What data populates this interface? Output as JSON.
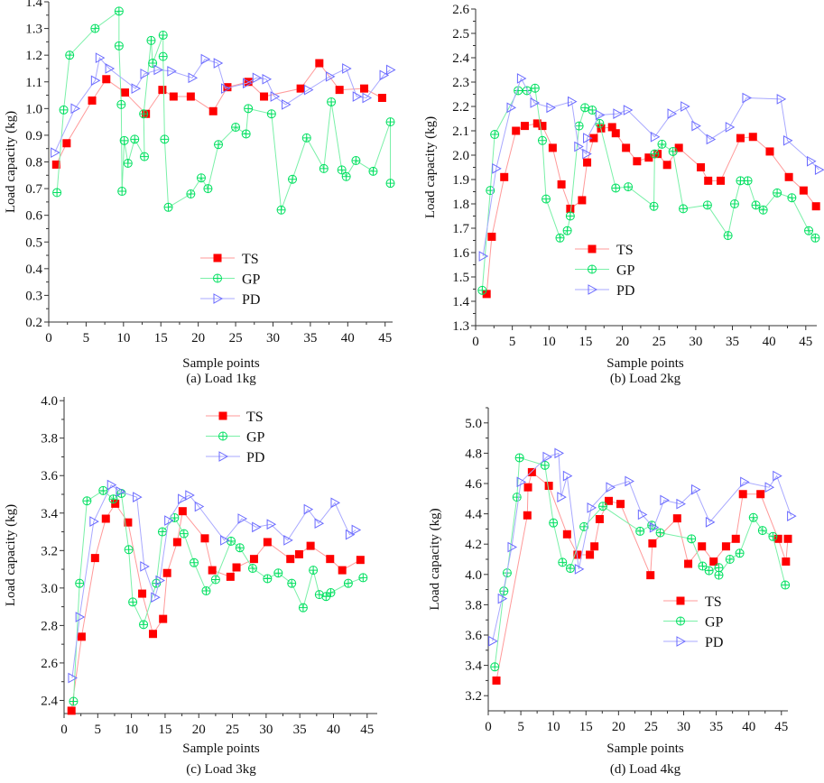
{
  "legend_labels": [
    "TS",
    "GP",
    "PD"
  ],
  "colors": {
    "TS": "#ff0000",
    "TS_line": "#ff9a9a",
    "GP": "#00e060",
    "GP_line": "#7af0a8",
    "PD": "#6a6aff",
    "PD_line": "#a8a8ff"
  },
  "chart_data": [
    {
      "type": "line",
      "caption": "(a) Load 1kg",
      "xlabel": "Sample points",
      "ylabel": "Load capacity (kg)",
      "xlim": [
        0,
        46
      ],
      "ylim": [
        0.2,
        1.4
      ],
      "xticks": [
        0,
        5,
        10,
        15,
        20,
        25,
        30,
        35,
        40,
        45
      ],
      "yticks": [
        0.2,
        0.3,
        0.4,
        0.5,
        0.6,
        0.7,
        0.8,
        0.9,
        1.0,
        1.1,
        1.2,
        1.3,
        1.4
      ],
      "ydec": 1,
      "legend": "bottom-center",
      "grid": false,
      "series": [
        {
          "name": "TS",
          "x": [
            1.0,
            2.4,
            5.8,
            7.7,
            10.2,
            13,
            15.2,
            16.7,
            19,
            22,
            23.9,
            26.7,
            28.8,
            33.7,
            36.2,
            38.9,
            42.2,
            44.6
          ],
          "y": [
            0.79,
            0.87,
            1.03,
            1.11,
            1.06,
            0.98,
            1.07,
            1.045,
            1.045,
            0.99,
            1.08,
            1.1,
            1.045,
            1.075,
            1.17,
            1.07,
            1.075,
            1.04
          ]
        },
        {
          "name": "GP",
          "x": [
            1.1,
            2.0,
            2.8,
            6.2,
            9.4,
            9.4,
            9.7,
            9.8,
            10.1,
            10.6,
            11.5,
            12.8,
            12.7,
            13.7,
            13.9,
            15.3,
            15.3,
            15.5,
            16.0,
            19.0,
            20.4,
            21.3,
            22.7,
            25,
            26.4,
            26.7,
            29.8,
            31.1,
            32.6,
            34.5,
            36.8,
            37.8,
            39.2,
            39.8,
            41.1,
            43.4,
            45.7,
            45.7
          ],
          "y": [
            0.685,
            0.995,
            1.2,
            1.3,
            1.365,
            1.235,
            1.015,
            0.69,
            0.88,
            0.795,
            0.885,
            0.82,
            0.98,
            1.255,
            1.17,
            1.275,
            1.195,
            0.885,
            0.63,
            0.68,
            0.74,
            0.7,
            0.865,
            0.93,
            0.905,
            1.0,
            0.98,
            0.62,
            0.735,
            0.89,
            0.775,
            1.025,
            0.77,
            0.745,
            0.805,
            0.765,
            0.95,
            0.72
          ]
        },
        {
          "name": "PD",
          "x": [
            0.8,
            3.5,
            6.2,
            6.8,
            8.1,
            11.6,
            12.8,
            14.6,
            16.4,
            19.2,
            20.9,
            22.6,
            23.6,
            26.5,
            27.8,
            29.1,
            30.2,
            31.7,
            34.7,
            37.6,
            39.8,
            41.2,
            42.5,
            44.8,
            45.7
          ],
          "y": [
            0.835,
            1.0,
            1.105,
            1.19,
            1.15,
            1.075,
            1.13,
            1.145,
            1.14,
            1.115,
            1.185,
            1.17,
            1.075,
            1.095,
            1.115,
            1.11,
            1.045,
            1.015,
            1.07,
            1.12,
            1.15,
            1.045,
            1.04,
            1.125,
            1.145
          ]
        }
      ]
    },
    {
      "type": "line",
      "caption": "(b) Load 2kg",
      "xlabel": "Sample points",
      "ylabel": "Load capacity (kg)",
      "xlim": [
        0,
        46.5
      ],
      "ylim": [
        1.3,
        2.6
      ],
      "xticks": [
        0,
        5,
        10,
        15,
        20,
        25,
        30,
        35,
        40,
        45
      ],
      "yticks": [
        1.3,
        1.4,
        1.5,
        1.6,
        1.7,
        1.8,
        1.9,
        2.0,
        2.1,
        2.2,
        2.3,
        2.4,
        2.5,
        2.6
      ],
      "ydec": 1,
      "legend": "bottom-center",
      "grid": false,
      "series": [
        {
          "name": "TS",
          "x": [
            1.5,
            2.2,
            3.9,
            5.5,
            6.7,
            8.4,
            9.1,
            10.5,
            11.7,
            12.9,
            14.5,
            15.2,
            16.1,
            17.1,
            18.6,
            19.1,
            20.5,
            22,
            23.6,
            24.8,
            26.1,
            27.7,
            30.7,
            31.7,
            33.4,
            36.1,
            37.8,
            40.1,
            42.7,
            44.7,
            46.4
          ],
          "y": [
            1.43,
            1.665,
            1.91,
            2.1,
            2.12,
            2.13,
            2.12,
            2.03,
            1.88,
            1.78,
            1.815,
            1.97,
            2.07,
            2.11,
            2.115,
            2.09,
            2.03,
            1.975,
            1.99,
            2.005,
            1.96,
            2.03,
            1.95,
            1.895,
            1.895,
            2.07,
            2.075,
            2.015,
            1.91,
            1.855,
            1.79
          ]
        },
        {
          "name": "GP",
          "x": [
            0.9,
            2.0,
            2.6,
            5.8,
            7.0,
            8.1,
            9.1,
            9.6,
            11.5,
            12.5,
            12.9,
            14.1,
            14.9,
            15.9,
            16.9,
            19.1,
            20.8,
            24.3,
            24.4,
            25.4,
            26.9,
            28.3,
            31.6,
            34.4,
            35.3,
            36.1,
            37.1,
            38.2,
            39.2,
            41.1,
            43.1,
            45.4,
            46.3
          ],
          "y": [
            1.445,
            1.855,
            2.085,
            2.265,
            2.265,
            2.275,
            2.06,
            1.82,
            1.66,
            1.69,
            1.75,
            2.12,
            2.195,
            2.185,
            2.13,
            1.865,
            1.87,
            1.79,
            2.005,
            2.045,
            2.015,
            1.78,
            1.795,
            1.67,
            1.8,
            1.895,
            1.895,
            1.795,
            1.775,
            1.845,
            1.825,
            1.69,
            1.66
          ]
        },
        {
          "name": "PD",
          "x": [
            1.0,
            2.8,
            4.8,
            6.2,
            8.0,
            10.2,
            13.1,
            14.0,
            15.1,
            15.2,
            16.9,
            19.3,
            20.7,
            24.4,
            26.7,
            28.5,
            30.0,
            32,
            34.6,
            36.9,
            41.6,
            42.5,
            45.7,
            46.8
          ],
          "y": [
            1.585,
            1.945,
            2.195,
            2.315,
            2.215,
            2.195,
            2.22,
            2.035,
            2.005,
            2.07,
            2.165,
            2.17,
            2.185,
            2.075,
            2.17,
            2.2,
            2.12,
            2.065,
            2.115,
            2.235,
            2.23,
            2.06,
            1.975,
            1.94
          ]
        }
      ]
    },
    {
      "type": "line",
      "caption": "(c) Load 3kg",
      "xlabel": "Sample points",
      "ylabel": "Load capacity (kg)",
      "xlim": [
        0,
        46.5
      ],
      "ylim": [
        2.33,
        4.02
      ],
      "xticks": [
        0,
        5,
        10,
        15,
        20,
        25,
        30,
        35,
        40,
        45
      ],
      "yticks": [
        2.4,
        2.6,
        2.8,
        3.0,
        3.2,
        3.4,
        3.6,
        3.8,
        4.0
      ],
      "ydec": 1,
      "legend": "top-center",
      "grid": false,
      "series": [
        {
          "name": "TS",
          "x": [
            1.1,
            2.6,
            4.6,
            6.2,
            7.6,
            9.5,
            11.6,
            13.2,
            14.7,
            15.3,
            16.8,
            17.6,
            20.9,
            22.0,
            24.7,
            25.6,
            28.2,
            30.2,
            33.6,
            34.9,
            36.6,
            39.5,
            41.3,
            44.0
          ],
          "y": [
            2.345,
            2.74,
            3.16,
            3.37,
            3.45,
            3.35,
            2.97,
            2.755,
            2.835,
            3.08,
            3.245,
            3.41,
            3.265,
            3.095,
            3.06,
            3.11,
            3.155,
            3.245,
            3.155,
            3.18,
            3.225,
            3.155,
            3.095,
            3.15
          ]
        },
        {
          "name": "GP",
          "x": [
            1.4,
            2.3,
            3.4,
            5.8,
            7.3,
            8.5,
            9.6,
            10.2,
            11.8,
            13.7,
            14.6,
            16.4,
            17.8,
            19.3,
            21.1,
            22.5,
            24.8,
            26.1,
            28,
            30.2,
            31.8,
            33.8,
            35.5,
            37,
            37.9,
            38.9,
            39.6,
            42.2,
            44.4
          ],
          "y": [
            2.395,
            3.025,
            3.465,
            3.52,
            3.475,
            3.505,
            3.205,
            2.925,
            2.805,
            3.025,
            3.3,
            3.375,
            3.29,
            3.135,
            2.985,
            3.045,
            3.25,
            3.215,
            3.105,
            3.05,
            3.08,
            3.025,
            2.895,
            3.095,
            2.965,
            2.955,
            2.975,
            3.025,
            3.055
          ]
        },
        {
          "name": "PD",
          "x": [
            1.2,
            2.3,
            4.4,
            7.0,
            8.3,
            10.8,
            11.9,
            13.5,
            14.2,
            15.5,
            17.5,
            18.6,
            20.0,
            23.8,
            26.4,
            28.5,
            30.7,
            33.2,
            36.2,
            37.8,
            40.2,
            42.4,
            43.3
          ],
          "y": [
            2.52,
            2.845,
            3.355,
            3.55,
            3.515,
            3.485,
            3.115,
            2.95,
            3.04,
            3.36,
            3.475,
            3.495,
            3.435,
            3.255,
            3.37,
            3.325,
            3.34,
            3.255,
            3.42,
            3.345,
            3.455,
            3.285,
            3.31
          ]
        }
      ]
    },
    {
      "type": "line",
      "caption": "(d) Load 4kg",
      "xlabel": "Sample points",
      "ylabel": "Load capacity (kg)",
      "xlim": [
        0,
        46
      ],
      "ylim": [
        3.1,
        5.1
      ],
      "xticks": [
        0,
        5,
        10,
        15,
        20,
        25,
        30,
        35,
        40,
        45
      ],
      "yticks": [
        3.2,
        3.4,
        3.6,
        3.8,
        4.0,
        4.2,
        4.4,
        4.6,
        4.8,
        5.0
      ],
      "ydec": 1,
      "legend": "bottom-center",
      "grid": false,
      "series": [
        {
          "name": "TS",
          "x": [
            1.25,
            6.0,
            6.1,
            6.7,
            9.3,
            12.1,
            13.7,
            15.6,
            16.3,
            17.1,
            18.5,
            20.3,
            24.9,
            25.2,
            29.0,
            30.7,
            32.8,
            34.6,
            36.5,
            38.0,
            39.1,
            41.8,
            44.5,
            45.7,
            46.0
          ],
          "y": [
            3.3,
            4.39,
            4.575,
            4.675,
            4.585,
            4.265,
            4.13,
            4.13,
            4.185,
            4.365,
            4.485,
            4.465,
            3.995,
            4.205,
            4.37,
            4.07,
            4.185,
            4.085,
            4.185,
            4.235,
            4.53,
            4.53,
            4.235,
            4.085,
            4.235
          ]
        },
        {
          "name": "GP",
          "x": [
            1.0,
            2.4,
            2.9,
            4.4,
            4.8,
            8.7,
            10.0,
            11.4,
            12.6,
            14.7,
            17.6,
            23.3,
            25.1,
            26.4,
            31.2,
            32.9,
            33.9,
            35.4,
            35.4,
            37.1,
            38.6,
            40.7,
            42.1,
            43.7,
            45.6
          ],
          "y": [
            3.39,
            3.89,
            4.01,
            4.51,
            4.77,
            4.72,
            4.34,
            4.08,
            4.04,
            4.315,
            4.45,
            4.285,
            4.325,
            4.275,
            4.235,
            4.055,
            4.025,
            4.045,
            3.995,
            4.1,
            4.14,
            4.375,
            4.29,
            4.25,
            3.93
          ]
        },
        {
          "name": "PD",
          "x": [
            0.65,
            2.1,
            3.6,
            5.0,
            9.0,
            10.8,
            11.2,
            12.1,
            13.9,
            15.8,
            18.7,
            21.6,
            23.6,
            25.4,
            27.0,
            29.5,
            31.8,
            34.0,
            39.3,
            43.1,
            44.3,
            46.5
          ],
          "y": [
            3.56,
            3.84,
            4.18,
            4.61,
            4.775,
            4.8,
            4.51,
            4.65,
            4.035,
            4.44,
            4.575,
            4.615,
            4.395,
            4.31,
            4.49,
            4.465,
            4.56,
            4.345,
            4.61,
            4.575,
            4.65,
            4.385
          ]
        }
      ]
    }
  ]
}
